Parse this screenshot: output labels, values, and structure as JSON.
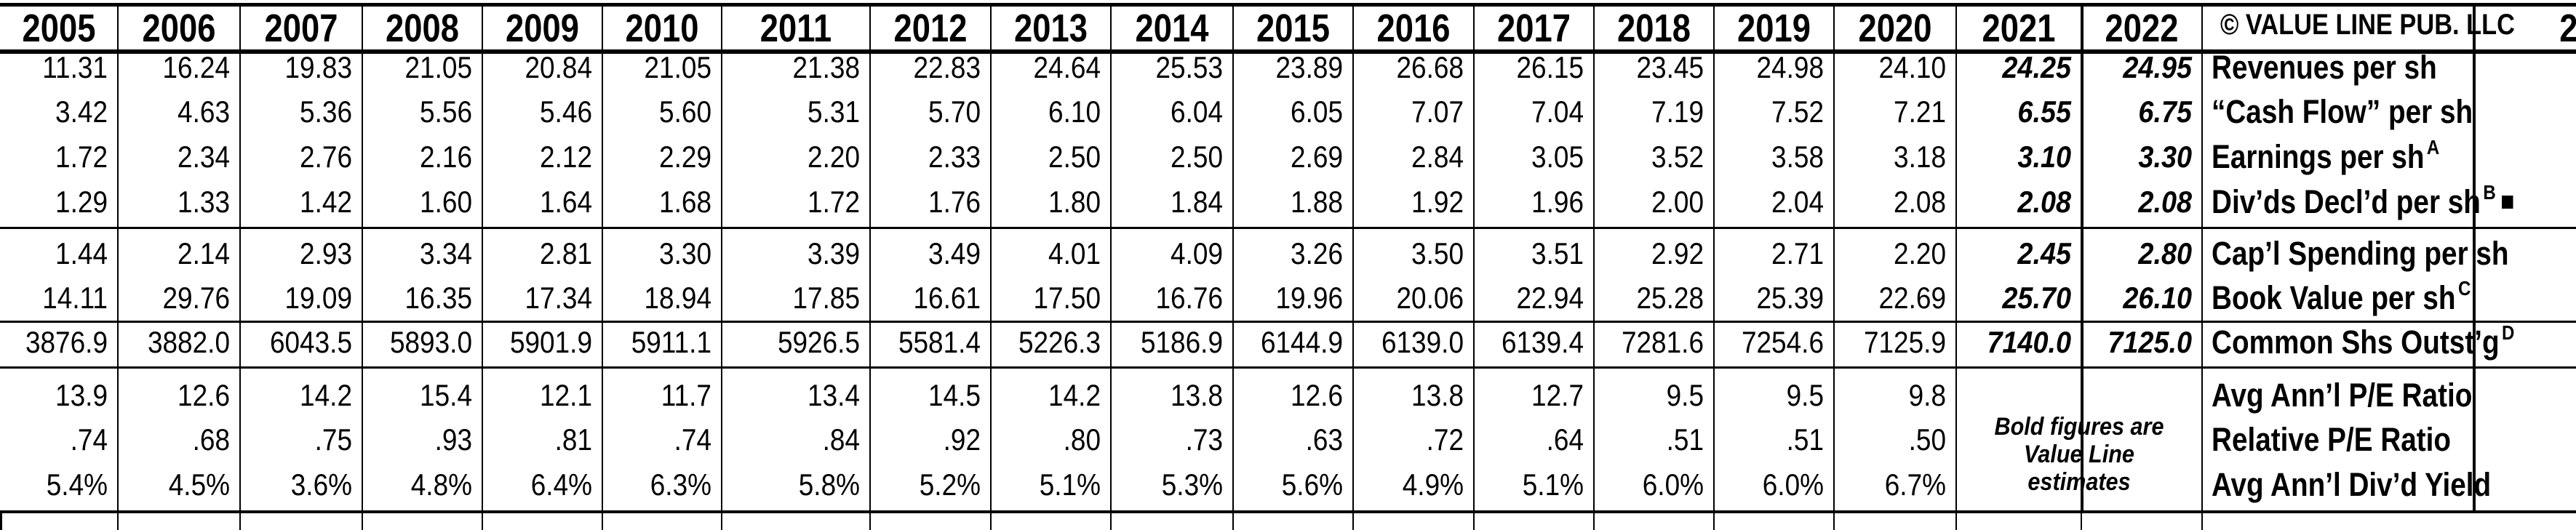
{
  "years": [
    "2005",
    "2006",
    "2007",
    "2008",
    "2009",
    "2010",
    "2011",
    "2012",
    "2013",
    "2014",
    "2015",
    "2016",
    "2017",
    "2018",
    "2019",
    "2020",
    "2021",
    "2022"
  ],
  "copyright": "© VALUE LINE PUB. LLC",
  "next_col_fragment": "2",
  "estimates_note": [
    "Bold figures are",
    "Value Line",
    "estimates"
  ],
  "rows": [
    {
      "label": "Revenues per sh",
      "sup": "",
      "square": false,
      "values": [
        "11.31",
        "16.24",
        "19.83",
        "21.05",
        "20.84",
        "21.05",
        "21.38",
        "22.83",
        "24.64",
        "25.53",
        "23.89",
        "26.68",
        "26.15",
        "23.45",
        "24.98",
        "24.10"
      ],
      "estimates": [
        "24.25",
        "24.95"
      ]
    },
    {
      "label": "“Cash Flow” per sh",
      "sup": "",
      "square": false,
      "values": [
        "3.42",
        "4.63",
        "5.36",
        "5.56",
        "5.46",
        "5.60",
        "5.31",
        "5.70",
        "6.10",
        "6.04",
        "6.05",
        "7.07",
        "7.04",
        "7.19",
        "7.52",
        "7.21"
      ],
      "estimates": [
        "6.55",
        "6.75"
      ]
    },
    {
      "label": "Earnings per sh",
      "sup": "A",
      "square": false,
      "values": [
        "1.72",
        "2.34",
        "2.76",
        "2.16",
        "2.12",
        "2.29",
        "2.20",
        "2.33",
        "2.50",
        "2.50",
        "2.69",
        "2.84",
        "3.05",
        "3.52",
        "3.58",
        "3.18"
      ],
      "estimates": [
        "3.10",
        "3.30"
      ]
    },
    {
      "label": "Div’ds Decl’d per sh",
      "sup": "B",
      "square": true,
      "values": [
        "1.29",
        "1.33",
        "1.42",
        "1.60",
        "1.64",
        "1.68",
        "1.72",
        "1.76",
        "1.80",
        "1.84",
        "1.88",
        "1.92",
        "1.96",
        "2.00",
        "2.04",
        "2.08"
      ],
      "estimates": [
        "2.08",
        "2.08"
      ]
    },
    {
      "label": "Cap’l Spending per sh",
      "sup": "",
      "square": false,
      "values": [
        "1.44",
        "2.14",
        "2.93",
        "3.34",
        "2.81",
        "3.30",
        "3.39",
        "3.49",
        "4.01",
        "4.09",
        "3.26",
        "3.50",
        "3.51",
        "2.92",
        "2.71",
        "2.20"
      ],
      "estimates": [
        "2.45",
        "2.80"
      ]
    },
    {
      "label": "Book Value per sh",
      "sup": "C",
      "square": false,
      "values": [
        "14.11",
        "29.76",
        "19.09",
        "16.35",
        "17.34",
        "18.94",
        "17.85",
        "16.61",
        "17.50",
        "16.76",
        "19.96",
        "20.06",
        "22.94",
        "25.28",
        "25.39",
        "22.69"
      ],
      "estimates": [
        "25.70",
        "26.10"
      ]
    },
    {
      "label": "Common Shs Outst’g",
      "sup": "D",
      "square": false,
      "values": [
        "3876.9",
        "3882.0",
        "6043.5",
        "5893.0",
        "5901.9",
        "5911.1",
        "5926.5",
        "5581.4",
        "5226.3",
        "5186.9",
        "6144.9",
        "6139.0",
        "6139.4",
        "7281.6",
        "7254.6",
        "7125.9"
      ],
      "estimates": [
        "7140.0",
        "7125.0"
      ]
    },
    {
      "label": "Avg Ann’l P/E Ratio",
      "sup": "",
      "square": false,
      "values": [
        "13.9",
        "12.6",
        "14.2",
        "15.4",
        "12.1",
        "11.7",
        "13.4",
        "14.5",
        "14.2",
        "13.8",
        "12.6",
        "13.8",
        "12.7",
        "9.5",
        "9.5",
        "9.8"
      ],
      "estimates": []
    },
    {
      "label": "Relative P/E Ratio",
      "sup": "",
      "square": false,
      "values": [
        ".74",
        ".68",
        ".75",
        ".93",
        ".81",
        ".74",
        ".84",
        ".92",
        ".80",
        ".73",
        ".63",
        ".72",
        ".64",
        ".51",
        ".51",
        ".50"
      ],
      "estimates": []
    },
    {
      "label": "Avg Ann’l Div’d Yield",
      "sup": "",
      "square": false,
      "values": [
        "5.4%",
        "4.5%",
        "3.6%",
        "4.8%",
        "6.4%",
        "6.3%",
        "5.8%",
        "5.2%",
        "5.1%",
        "5.3%",
        "5.6%",
        "4.9%",
        "5.1%",
        "6.0%",
        "6.0%",
        "6.7%"
      ],
      "estimates": []
    }
  ]
}
